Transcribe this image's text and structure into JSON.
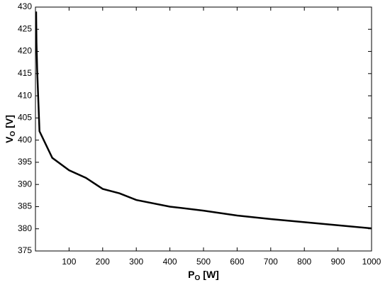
{
  "chart_data": {
    "type": "line",
    "x_label": {
      "main": "P",
      "sub": "O",
      "unit": "[W]"
    },
    "y_label": {
      "main": "V",
      "sub": "O",
      "unit": "[V]"
    },
    "series": [
      {
        "color": "#000000",
        "x": [
          2,
          3,
          5,
          12,
          50,
          100,
          150,
          200,
          250,
          300,
          400,
          500,
          600,
          700,
          800,
          900,
          1000
        ],
        "values": [
          429,
          422,
          416,
          402,
          396,
          393.2,
          391.5,
          389,
          388,
          386.5,
          385,
          384.1,
          383,
          382.2,
          381.5,
          380.8,
          380.1
        ]
      }
    ],
    "xlim": [
      0,
      1000
    ],
    "xticks": [
      100,
      200,
      300,
      400,
      500,
      600,
      700,
      800,
      900,
      1000
    ],
    "ylim": [
      375,
      430
    ],
    "yticks": [
      375,
      380,
      385,
      390,
      395,
      400,
      405,
      410,
      415,
      420,
      425,
      430
    ],
    "grid": false
  }
}
